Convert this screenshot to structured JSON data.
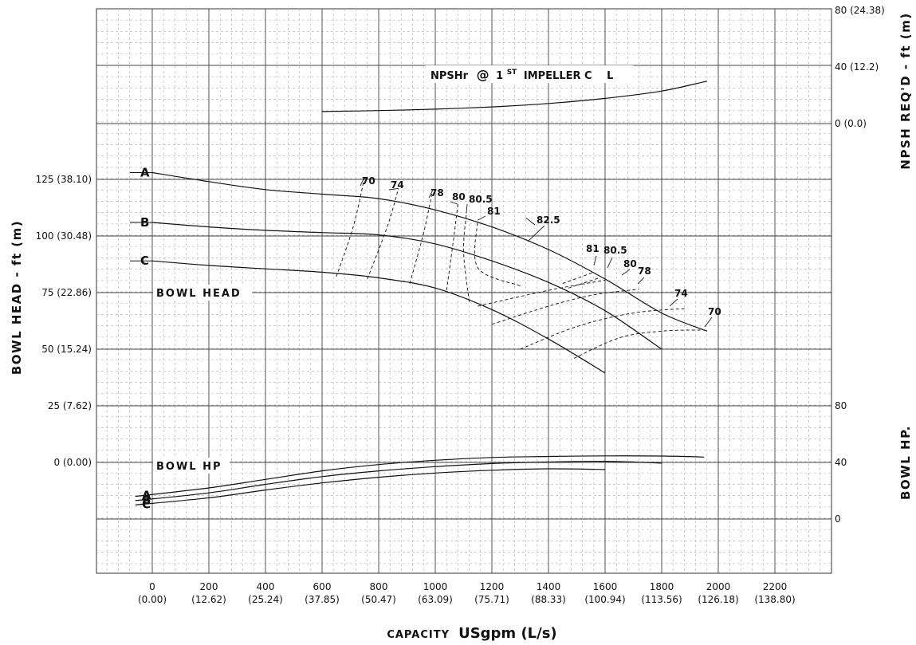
{
  "chart_data": {
    "type": "line",
    "x_axis": {
      "title_small": "CAPACITY",
      "title_large": "USgpm (L/s)",
      "ticks": [
        {
          "value": 0,
          "label": "0",
          "sub": "(0.00)"
        },
        {
          "value": 200,
          "label": "200",
          "sub": "(12.62)"
        },
        {
          "value": 400,
          "label": "400",
          "sub": "(25.24)"
        },
        {
          "value": 600,
          "label": "600",
          "sub": "(37.85)"
        },
        {
          "value": 800,
          "label": "800",
          "sub": "(50.47)"
        },
        {
          "value": 1000,
          "label": "1000",
          "sub": "(63.09)"
        },
        {
          "value": 1200,
          "label": "1200",
          "sub": "(75.71)"
        },
        {
          "value": 1400,
          "label": "1400",
          "sub": "(88.33)"
        },
        {
          "value": 1600,
          "label": "1600",
          "sub": "(100.94)"
        },
        {
          "value": 1800,
          "label": "1800",
          "sub": "(113.56)"
        },
        {
          "value": 2000,
          "label": "2000",
          "sub": "(126.18)"
        },
        {
          "value": 2200,
          "label": "2200",
          "sub": "(138.80)"
        }
      ],
      "range": [
        -200,
        2400
      ]
    },
    "head_axis": {
      "title": "BOWL HEAD - ft (m)",
      "ticks": [
        {
          "value": 125,
          "label": "125 (38.10)"
        },
        {
          "value": 100,
          "label": "100 (30.48)"
        },
        {
          "value": 75,
          "label": "75 (22.86)"
        },
        {
          "value": 50,
          "label": "50 (15.24)"
        },
        {
          "value": 25,
          "label": "25 (7.62)"
        },
        {
          "value": 0,
          "label": "0 (0.00)"
        }
      ]
    },
    "npsh_axis": {
      "title": "NPSH REQ'D - ft (m)",
      "ticks": [
        {
          "value": 80,
          "label": "80 (24.38)"
        },
        {
          "value": 40,
          "label": "40 (12.2)"
        },
        {
          "value": 0,
          "label": "0 (0.0)"
        }
      ]
    },
    "hp_axis": {
      "title": "BOWL HP.",
      "ticks": [
        {
          "value": 80,
          "label": "80"
        },
        {
          "value": 40,
          "label": "40"
        },
        {
          "value": 0,
          "label": "0"
        }
      ]
    },
    "npsh_title": {
      "prefix": "NPSHr",
      "at": "@",
      "one": "1",
      "st": "ST",
      "impeller": "IMPELLER C",
      "cl": "L"
    },
    "bowl_head_label": "BOWL HEAD",
    "bowl_hp_label": "BOWL HP",
    "npsh_curve": [
      [
        600,
        8.5
      ],
      [
        800,
        9.2
      ],
      [
        1000,
        10.2
      ],
      [
        1200,
        11.8
      ],
      [
        1400,
        14.2
      ],
      [
        1600,
        17.8
      ],
      [
        1800,
        23
      ],
      [
        1960,
        30
      ]
    ],
    "head_curves": [
      {
        "name": "A",
        "points": [
          [
            0,
            128
          ],
          [
            200,
            124
          ],
          [
            400,
            120.5
          ],
          [
            600,
            118.5
          ],
          [
            800,
            116.5
          ],
          [
            1000,
            111.5
          ],
          [
            1200,
            104
          ],
          [
            1400,
            94
          ],
          [
            1600,
            81
          ],
          [
            1800,
            66
          ],
          [
            1960,
            58
          ]
        ]
      },
      {
        "name": "B",
        "points": [
          [
            0,
            106
          ],
          [
            200,
            104
          ],
          [
            400,
            102.5
          ],
          [
            600,
            101.5
          ],
          [
            800,
            100.5
          ],
          [
            1000,
            96.5
          ],
          [
            1200,
            89
          ],
          [
            1400,
            79.5
          ],
          [
            1600,
            67
          ],
          [
            1800,
            50
          ]
        ]
      },
      {
        "name": "C",
        "points": [
          [
            0,
            89
          ],
          [
            200,
            87
          ],
          [
            400,
            85.5
          ],
          [
            600,
            84
          ],
          [
            800,
            81.5
          ],
          [
            1000,
            77
          ],
          [
            1200,
            67.5
          ],
          [
            1400,
            54.5
          ],
          [
            1600,
            39.5
          ]
        ]
      }
    ],
    "hp_curves": [
      {
        "name": "A",
        "points": [
          [
            -60,
            16
          ],
          [
            200,
            22
          ],
          [
            400,
            28
          ],
          [
            600,
            34
          ],
          [
            800,
            38.5
          ],
          [
            1000,
            41.5
          ],
          [
            1200,
            43.5
          ],
          [
            1400,
            44.2
          ],
          [
            1600,
            44.6
          ],
          [
            1800,
            44.5
          ],
          [
            1950,
            43.8
          ]
        ]
      },
      {
        "name": "B",
        "points": [
          [
            -60,
            13
          ],
          [
            200,
            18.5
          ],
          [
            400,
            24.5
          ],
          [
            600,
            30
          ],
          [
            800,
            34
          ],
          [
            1000,
            37
          ],
          [
            1200,
            39.2
          ],
          [
            1400,
            40.3
          ],
          [
            1600,
            40.8
          ],
          [
            1800,
            39.5
          ]
        ]
      },
      {
        "name": "C",
        "points": [
          [
            -60,
            10
          ],
          [
            200,
            15
          ],
          [
            400,
            20.5
          ],
          [
            600,
            25.5
          ],
          [
            800,
            29.5
          ],
          [
            1000,
            32.5
          ],
          [
            1200,
            34.5
          ],
          [
            1400,
            35.5
          ],
          [
            1600,
            35
          ]
        ]
      }
    ],
    "efficiency_contours": [
      {
        "label": "70",
        "left": [
          [
            650,
            82
          ],
          [
            710,
            104
          ],
          [
            750,
            126
          ]
        ],
        "right": [
          [
            1490,
            46
          ],
          [
            1650,
            55
          ],
          [
            1800,
            58
          ],
          [
            1950,
            58.5
          ]
        ]
      },
      {
        "label": "74",
        "left": [
          [
            760,
            81
          ],
          [
            830,
            104
          ],
          [
            870,
            121
          ]
        ],
        "right": [
          [
            1300,
            50
          ],
          [
            1500,
            60
          ],
          [
            1700,
            66
          ],
          [
            1890,
            68
          ]
        ]
      },
      {
        "label": "78",
        "left": [
          [
            910,
            79
          ],
          [
            960,
            102
          ],
          [
            990,
            120
          ]
        ],
        "right": [
          [
            1200,
            61
          ],
          [
            1400,
            69
          ],
          [
            1560,
            74
          ],
          [
            1720,
            76.5
          ]
        ]
      },
      {
        "label": "80",
        "left": [
          [
            1040,
            76
          ],
          [
            1065,
            99
          ],
          [
            1080,
            114
          ]
        ],
        "right": [
          [
            1150,
            69
          ],
          [
            1400,
            76
          ],
          [
            1600,
            80.5
          ]
        ]
      },
      {
        "label": "80.5",
        "left": [
          [
            1120,
            71
          ],
          [
            1100,
            93
          ],
          [
            1110,
            110
          ]
        ],
        "right": [
          [
            1470,
            77
          ],
          [
            1580,
            81.5
          ]
        ]
      },
      {
        "label": "81",
        "left": [
          [
            1300,
            78
          ],
          [
            1150,
            86
          ],
          [
            1150,
            107
          ]
        ],
        "right": [
          [
            1450,
            79
          ],
          [
            1560,
            84
          ]
        ]
      },
      {
        "label": "82.5",
        "left": [
          [
            1320,
            108
          ]
        ],
        "right": []
      }
    ],
    "efficiency_label_right": [
      {
        "label": "81"
      },
      {
        "label": "80.5"
      },
      {
        "label": "80"
      },
      {
        "label": "78"
      },
      {
        "label": "74"
      },
      {
        "label": "70"
      }
    ]
  }
}
